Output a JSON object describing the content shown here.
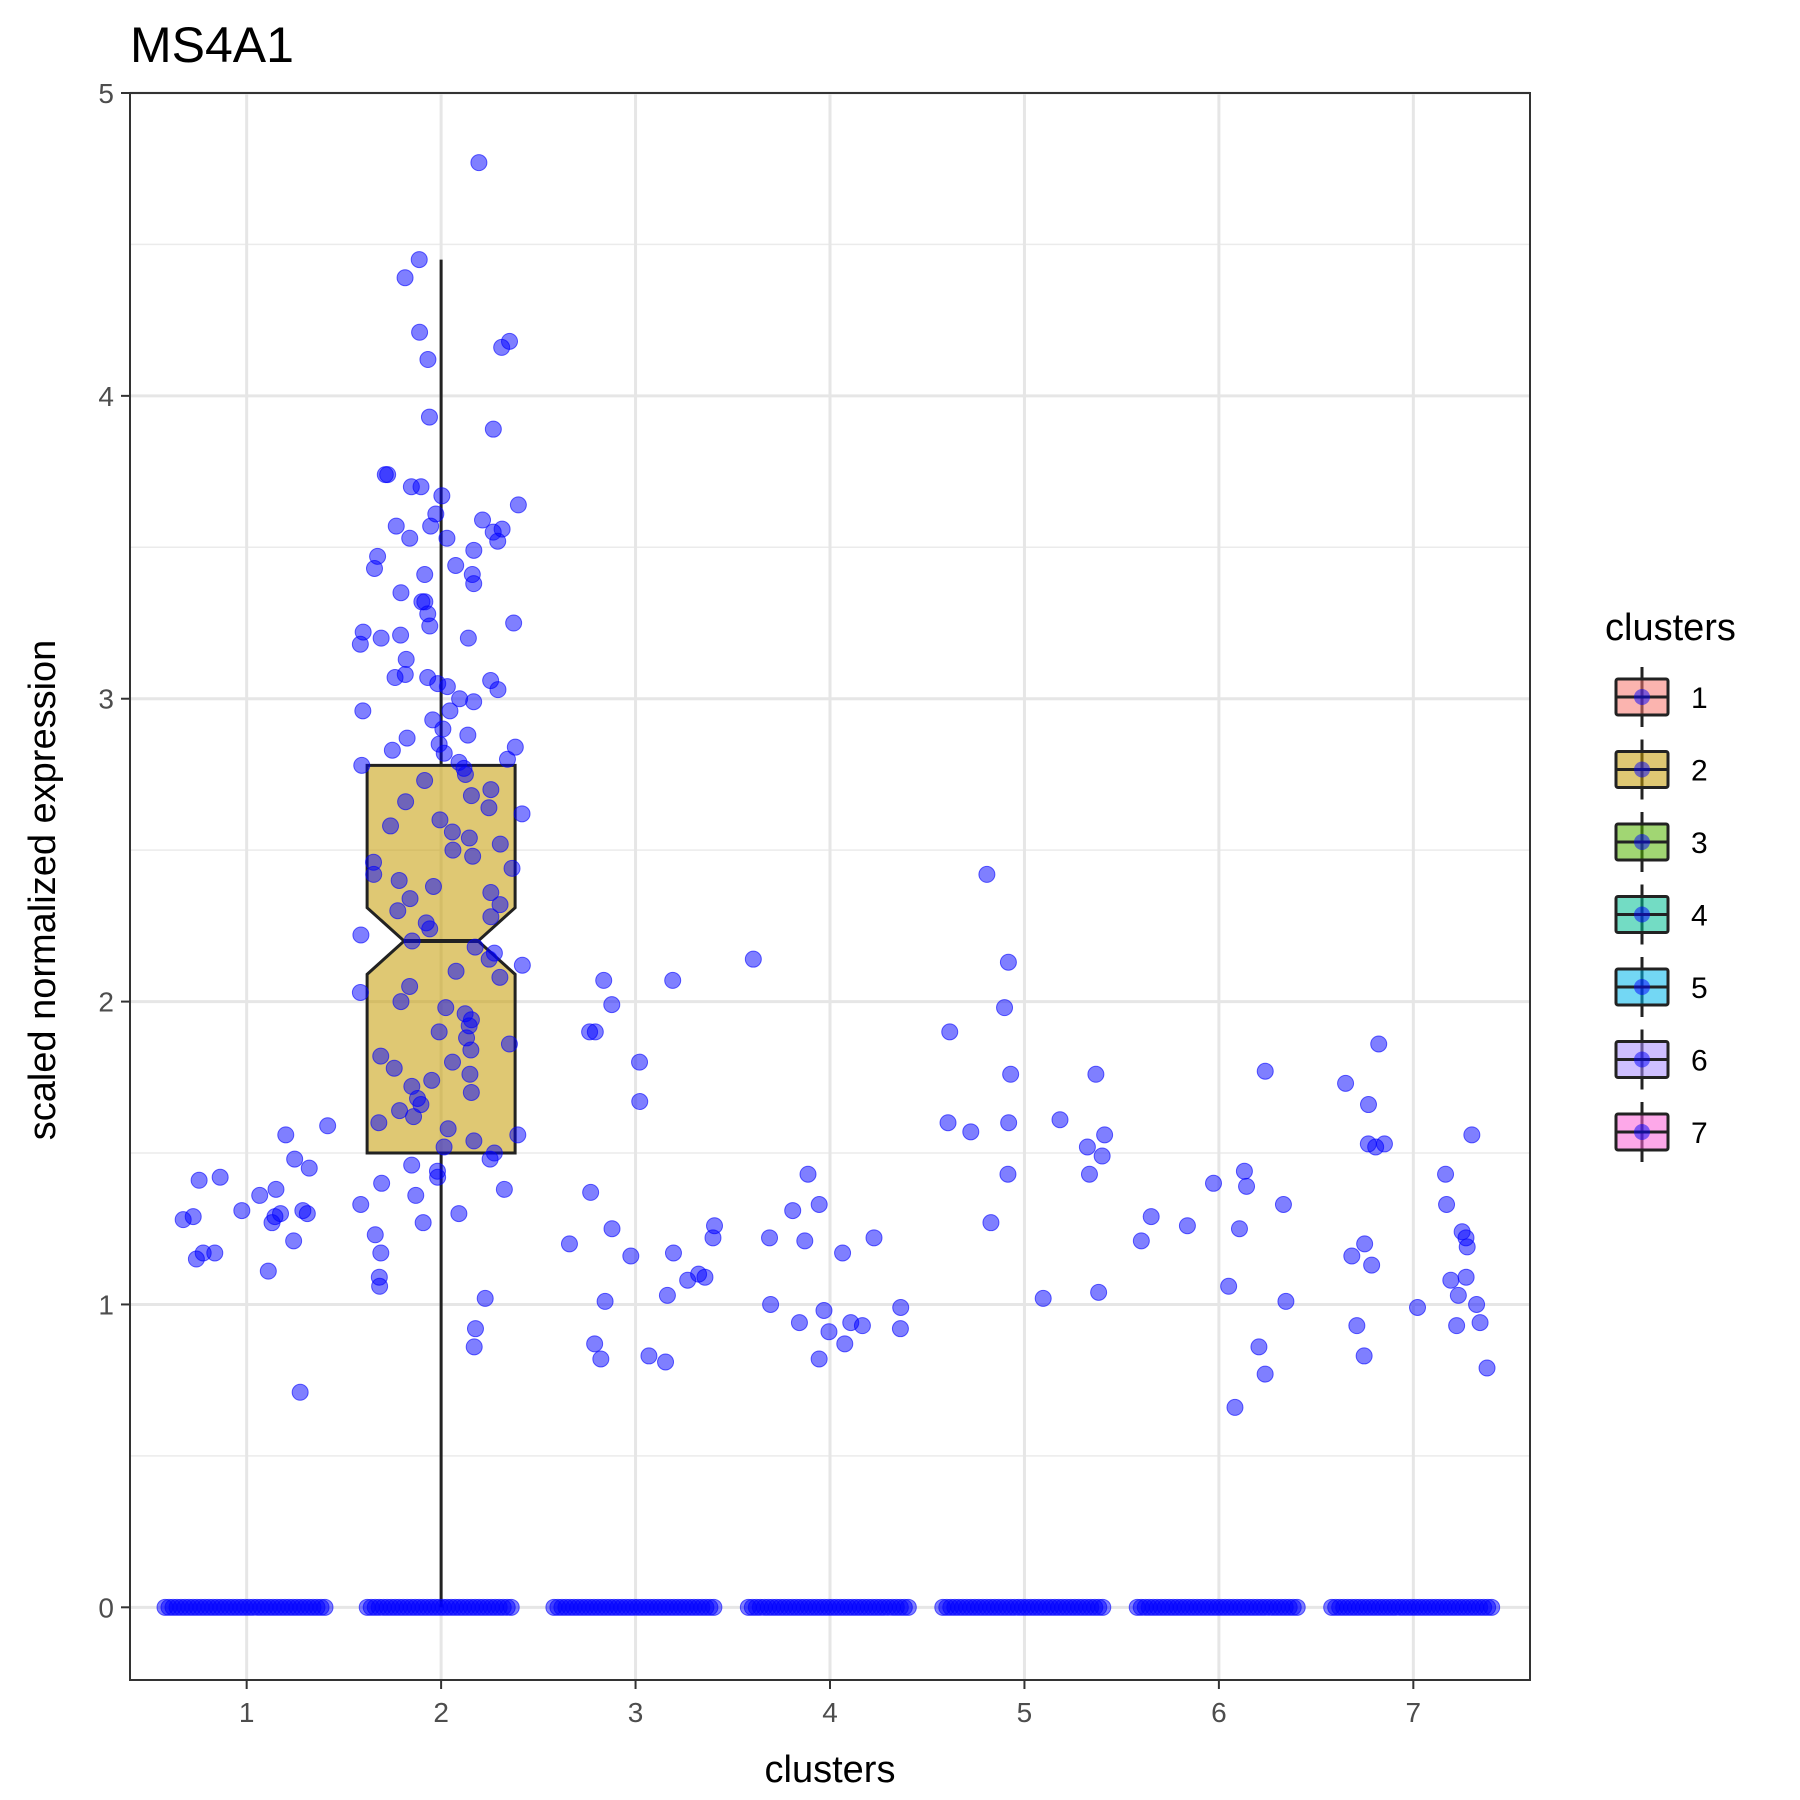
{
  "chart_data": {
    "type": "box-jitter",
    "title": "MS4A1",
    "xlabel": "clusters",
    "ylabel": "scaled normalized expression",
    "categories": [
      "1",
      "2",
      "3",
      "4",
      "5",
      "6",
      "7"
    ],
    "ylim": [
      -0.24,
      5.0
    ],
    "yticks": [
      0,
      1,
      2,
      3,
      4,
      5
    ],
    "grid": true,
    "legend": {
      "title": "clusters",
      "position": "right",
      "entries": [
        "1",
        "2",
        "3",
        "4",
        "5",
        "6",
        "7"
      ],
      "colors": [
        "#F8766D",
        "#C49A00",
        "#53B400",
        "#00C094",
        "#00B6EB",
        "#A58AFF",
        "#FB61D7"
      ]
    },
    "point_color": "#0000FF",
    "box": {
      "category": "2",
      "q1": 1.5,
      "median": 2.2,
      "q3": 2.78,
      "notch_low": 2.09,
      "notch_high": 2.31,
      "whisker_low": 0.0,
      "whisker_high": 4.45,
      "fill": "#C49A00"
    },
    "nonzero_points": [
      {
        "cluster": "1",
        "values": [
          1.27,
          1.17,
          1.11,
          1.59,
          1.38,
          1.29,
          1.29,
          1.45,
          1.3,
          0.71,
          1.56,
          1.42,
          1.48,
          1.15,
          1.36,
          1.17,
          1.41,
          1.21,
          1.3,
          1.31,
          1.28,
          1.31
        ]
      },
      {
        "cluster": "2",
        "values": [
          4.77,
          4.45,
          4.39,
          4.21,
          4.18,
          4.16,
          4.12,
          3.93,
          3.89,
          3.74,
          3.74,
          3.7,
          3.7,
          3.67,
          3.64,
          3.61,
          3.59,
          3.57,
          3.57,
          3.56,
          3.55,
          3.53,
          3.53,
          3.52,
          3.49,
          3.47,
          3.44,
          3.43,
          3.41,
          3.41,
          3.38,
          3.35,
          3.32,
          3.32,
          3.28,
          3.25,
          3.24,
          3.22,
          3.21,
          3.2,
          3.2,
          3.18,
          3.13,
          3.08,
          3.07,
          3.07,
          3.06,
          3.05,
          3.04,
          3.03,
          3.0,
          2.99,
          2.96,
          2.96,
          2.93,
          2.9,
          2.88,
          2.87,
          2.85,
          2.84,
          2.83,
          2.82,
          2.8,
          2.79,
          2.78,
          2.77,
          2.75,
          2.73,
          2.7,
          2.68,
          2.66,
          2.64,
          2.62,
          2.6,
          2.58,
          2.56,
          2.54,
          2.52,
          2.5,
          2.48,
          2.46,
          2.44,
          2.42,
          2.4,
          2.38,
          2.36,
          2.34,
          2.32,
          2.3,
          2.28,
          2.26,
          2.24,
          2.22,
          2.2,
          2.18,
          2.16,
          2.14,
          2.12,
          2.1,
          2.08,
          2.05,
          2.03,
          2.0,
          1.98,
          1.96,
          1.94,
          1.92,
          1.9,
          1.88,
          1.86,
          1.84,
          1.82,
          1.8,
          1.78,
          1.76,
          1.74,
          1.72,
          1.7,
          1.68,
          1.66,
          1.64,
          1.62,
          1.6,
          1.58,
          1.56,
          1.54,
          1.52,
          1.5,
          1.48,
          1.46,
          1.44,
          1.42,
          1.4,
          1.38,
          1.36,
          1.33,
          1.3,
          1.27,
          1.23,
          1.17,
          1.09,
          1.06,
          1.02,
          0.92,
          0.86
        ]
      },
      {
        "cluster": "3",
        "values": [
          1.99,
          1.9,
          1.16,
          1.09,
          1.01,
          1.2,
          1.1,
          1.25,
          1.26,
          1.37,
          0.87,
          0.83,
          1.22,
          1.9,
          1.17,
          2.07,
          1.08,
          0.82,
          1.8,
          2.07,
          1.67,
          1.03,
          0.81
        ]
      },
      {
        "cluster": "4",
        "values": [
          1.31,
          1.0,
          1.22,
          2.14,
          1.22,
          0.91,
          0.98,
          1.43,
          0.93,
          0.94,
          1.17,
          1.21,
          1.33,
          0.82,
          0.87,
          0.94,
          0.99,
          0.92
        ]
      },
      {
        "cluster": "5",
        "values": [
          1.02,
          2.13,
          1.52,
          2.42,
          1.9,
          1.6,
          1.43,
          1.76,
          1.49,
          1.6,
          1.76,
          1.98,
          1.57,
          1.43,
          1.27,
          1.04,
          1.61,
          1.56
        ]
      },
      {
        "cluster": "6",
        "values": [
          1.77,
          1.4,
          1.39,
          1.33,
          1.26,
          0.77,
          0.66,
          1.25,
          1.06,
          1.29,
          1.01,
          0.86,
          1.21,
          1.44
        ]
      },
      {
        "cluster": "7",
        "values": [
          1.86,
          1.22,
          1.08,
          0.79,
          0.99,
          1.0,
          1.2,
          1.16,
          1.53,
          0.94,
          1.24,
          1.52,
          1.53,
          1.56,
          1.03,
          1.43,
          1.33,
          0.83,
          1.19,
          1.09,
          0.93,
          1.66,
          0.93,
          1.73,
          1.13
        ]
      }
    ],
    "zero_point_bands": [
      {
        "cluster": "1",
        "from": -0.42,
        "to": 0.42
      },
      {
        "cluster": "2",
        "from": -0.38,
        "to": 0.38
      },
      {
        "cluster": "3",
        "from": -0.42,
        "to": 0.42
      },
      {
        "cluster": "4",
        "from": -0.42,
        "to": 0.42
      },
      {
        "cluster": "5",
        "from": -0.42,
        "to": 0.42
      },
      {
        "cluster": "6",
        "from": -0.42,
        "to": 0.42
      },
      {
        "cluster": "7",
        "from": -0.42,
        "to": 0.42
      }
    ]
  }
}
